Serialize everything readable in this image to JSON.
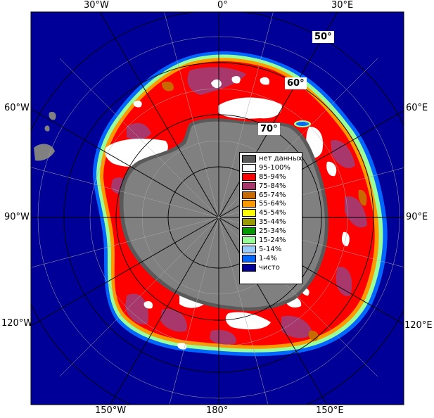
{
  "lon_labels": {
    "top_30w": "30°W",
    "top_0": "0°",
    "top_30e": "30°E",
    "left_60w": "60°W",
    "left_90w": "90°W",
    "left_120w": "120°W",
    "right_60e": "60°E",
    "right_90e": "90°E",
    "right_120e": "120°E",
    "bottom_150w": "150°W",
    "bottom_180": "180°",
    "bottom_150e": "150°E"
  },
  "lat_labels": {
    "lat_50": "50°",
    "lat_60": "60°",
    "lat_70": "70°"
  },
  "legend": [
    {
      "label": "нет данных",
      "color": "#595959"
    },
    {
      "label": "95-100%",
      "color": "#ffffff"
    },
    {
      "label": "85-94%",
      "color": "#ff0000"
    },
    {
      "label": "75-84%",
      "color": "#a8386b"
    },
    {
      "label": "65-74%",
      "color": "#c96a00"
    },
    {
      "label": "55-64%",
      "color": "#ff9900"
    },
    {
      "label": "45-54%",
      "color": "#ffff00"
    },
    {
      "label": "35-44%",
      "color": "#999900"
    },
    {
      "label": "25-34%",
      "color": "#009900"
    },
    {
      "label": "15-24%",
      "color": "#99ff99"
    },
    {
      "label": "5-14%",
      "color": "#99ccff"
    },
    {
      "label": "1-4%",
      "color": "#0066ff"
    },
    {
      "label": "чисто",
      "color": "#000099"
    }
  ],
  "colors": {
    "open_water": "#000099",
    "land": "#808080",
    "coast_edge": "#595959",
    "grid": "#000000"
  }
}
